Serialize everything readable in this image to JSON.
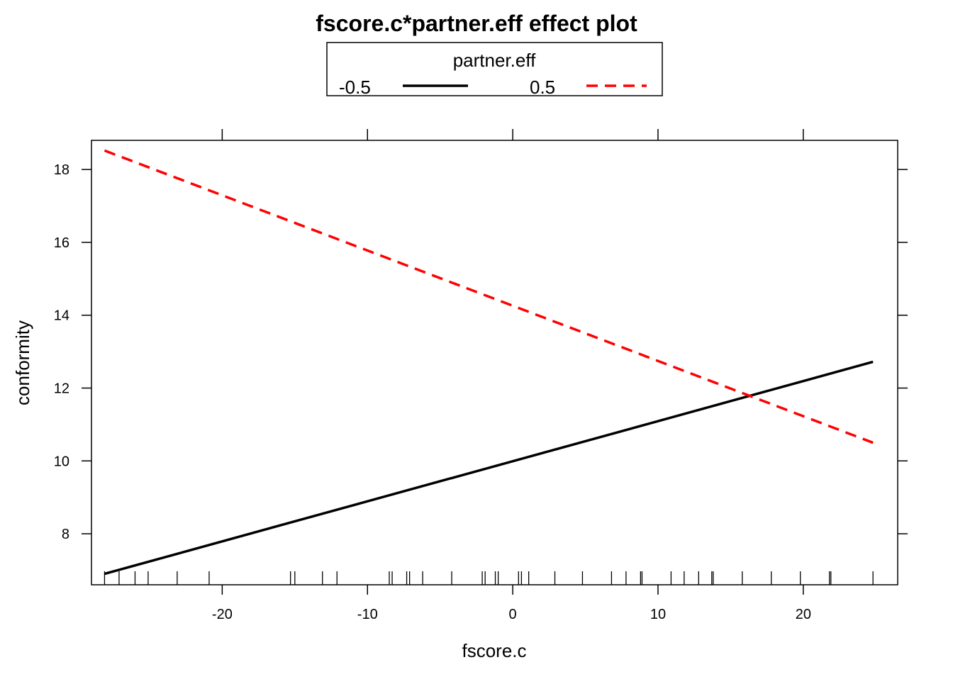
{
  "chart_data": {
    "type": "line",
    "title": "fscore.c*partner.eff effect plot",
    "xlabel": "fscore.c",
    "ylabel": "conformity",
    "xlim": [
      -29,
      26.5
    ],
    "ylim": [
      6.6,
      18.8
    ],
    "x_ticks": [
      -20,
      -10,
      0,
      10,
      20
    ],
    "x_tick_labels": [
      "-20",
      "-10",
      "0",
      "10",
      "20"
    ],
    "y_ticks": [
      8,
      10,
      12,
      14,
      16,
      18
    ],
    "y_tick_labels": [
      "8",
      "10",
      "12",
      "14",
      "16",
      "18"
    ],
    "grid": false,
    "legend": {
      "title": "partner.eff",
      "placement": "top-center"
    },
    "series": [
      {
        "name": "-0.5",
        "color": "#000000",
        "dash": "solid",
        "x": [
          -28.1,
          24.8
        ],
        "y": [
          6.9,
          12.72
        ]
      },
      {
        "name": "0.5",
        "color": "#ff0000",
        "dash": "dashed",
        "x": [
          -28.1,
          24.8
        ],
        "y": [
          18.52,
          10.5
        ]
      }
    ],
    "rug_x": [
      -28.1,
      -27.1,
      -26.0,
      -25.1,
      -23.1,
      -20.9,
      -15.3,
      -15.0,
      -13.1,
      -12.1,
      -8.5,
      -8.3,
      -7.3,
      -7.1,
      -6.2,
      -4.2,
      -2.1,
      -1.9,
      -1.2,
      -1.0,
      0.4,
      0.6,
      1.1,
      2.9,
      4.8,
      6.8,
      7.8,
      8.8,
      8.9,
      10.9,
      11.8,
      12.8,
      13.7,
      13.8,
      15.8,
      17.8,
      19.8,
      21.8,
      21.9,
      24.8
    ]
  }
}
